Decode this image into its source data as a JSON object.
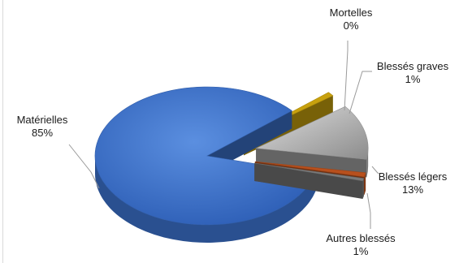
{
  "chart_data": {
    "type": "pie",
    "style": "3d-exploded",
    "slices": [
      {
        "name": "Matérielles",
        "value": 85,
        "label": "85%",
        "color": "#3a6fc8"
      },
      {
        "name": "Autres blessés",
        "value": 1,
        "label": "1%",
        "color": "#c8a10e"
      },
      {
        "name": "Blessés légers",
        "value": 13,
        "label": "13%",
        "color": "#a6a6a6"
      },
      {
        "name": "Blessés graves",
        "value": 1,
        "label": "1%",
        "color": "#b8501d"
      },
      {
        "name": "Mortelles",
        "value": 0,
        "label": "0%",
        "color": "#7a7a7a"
      }
    ],
    "legend": "none",
    "data_labels": "outside-with-leader-lines"
  }
}
